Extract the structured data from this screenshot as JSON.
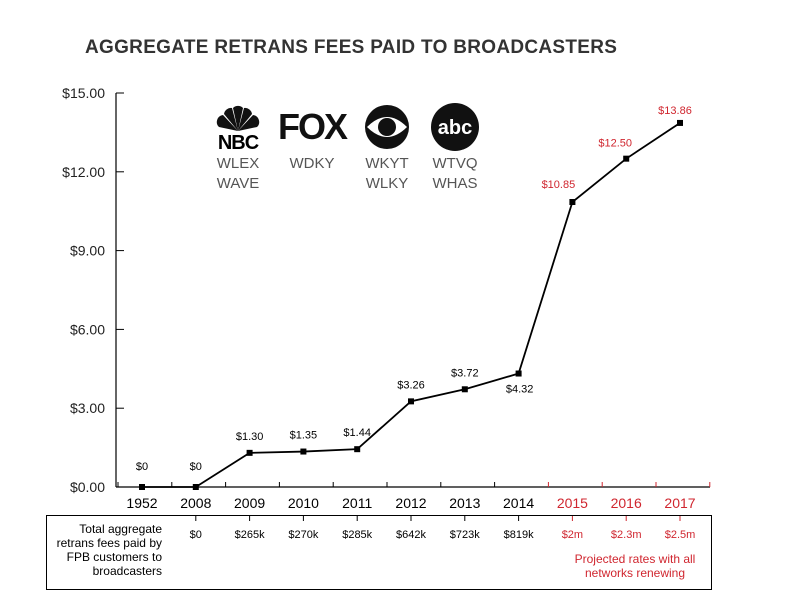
{
  "colors": {
    "actual": "#000000",
    "projected": "#d0262f",
    "text": "#333333"
  },
  "chart_data": {
    "type": "line",
    "title": "AGGREGATE RETRANS FEES PAID TO BROADCASTERS",
    "xlabel": "",
    "ylabel": "",
    "ylim": [
      0,
      15
    ],
    "yticks": [
      "$0.00",
      "$3.00",
      "$6.00",
      "$9.00",
      "$12.00",
      "$15.00"
    ],
    "ytick_values": [
      0,
      3,
      6,
      9,
      12,
      15
    ],
    "categories": [
      "1952",
      "2008",
      "2009",
      "2010",
      "2011",
      "2012",
      "2013",
      "2014",
      "2015",
      "2016",
      "2017"
    ],
    "values": [
      0,
      0,
      1.3,
      1.35,
      1.44,
      3.26,
      3.72,
      4.32,
      10.85,
      12.5,
      13.86
    ],
    "data_labels": [
      "$0",
      "$0",
      "$1.30",
      "$1.35",
      "$1.44",
      "$3.26",
      "$3.72",
      "$4.32",
      "$10.85",
      "$12.50",
      "$13.86"
    ],
    "projected": [
      false,
      false,
      false,
      false,
      false,
      false,
      false,
      false,
      true,
      true,
      true
    ],
    "grid": false,
    "legend": "none"
  },
  "networks": [
    {
      "logo_name": "nbc-logo",
      "logo_text": "NBC",
      "stations": [
        "WLEX",
        "WAVE"
      ]
    },
    {
      "logo_name": "fox-logo",
      "logo_text": "FOX",
      "stations": [
        "WDKY"
      ]
    },
    {
      "logo_name": "cbs-logo",
      "logo_text": "",
      "stations": [
        "WKYT",
        "WLKY"
      ]
    },
    {
      "logo_name": "abc-logo",
      "logo_text": "abc",
      "stations": [
        "WTVQ",
        "WHAS"
      ]
    }
  ],
  "table": {
    "label": "Total aggregate retrans fees paid by FPB customers to broadcasters",
    "values": [
      "",
      "$0",
      "$265k",
      "$270k",
      "$285k",
      "$642k",
      "$723k",
      "$819k",
      "$2m",
      "$2.3m",
      "$2.5m"
    ],
    "note": "Projected rates with all networks renewing"
  }
}
